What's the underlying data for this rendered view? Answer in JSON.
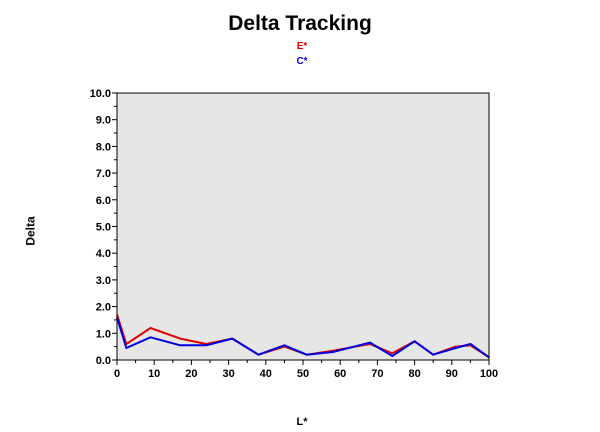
{
  "chart_data": {
    "type": "line",
    "title": "Delta Tracking",
    "xlabel": "L*",
    "ylabel": "Delta",
    "xlim": [
      0,
      100
    ],
    "ylim": [
      0,
      10
    ],
    "x_ticks": [
      "0",
      "10",
      "20",
      "30",
      "40",
      "50",
      "60",
      "70",
      "80",
      "90",
      "100"
    ],
    "y_ticks": [
      "0.0",
      "1.0",
      "2.0",
      "3.0",
      "4.0",
      "5.0",
      "6.0",
      "7.0",
      "8.0",
      "9.0",
      "10.0"
    ],
    "legend_position": "top-center",
    "background": "#e6e6e6",
    "series": [
      {
        "name": "E*",
        "color": "#e00000",
        "points": [
          [
            0,
            1.7
          ],
          [
            2.5,
            0.6
          ],
          [
            9,
            1.2
          ],
          [
            17,
            0.8
          ],
          [
            24,
            0.6
          ],
          [
            31,
            0.8
          ],
          [
            38,
            0.2
          ],
          [
            45,
            0.5
          ],
          [
            51,
            0.2
          ],
          [
            58,
            0.35
          ],
          [
            68,
            0.6
          ],
          [
            74,
            0.25
          ],
          [
            80,
            0.7
          ],
          [
            85,
            0.2
          ],
          [
            91,
            0.5
          ],
          [
            95,
            0.55
          ],
          [
            100,
            0.1
          ]
        ]
      },
      {
        "name": "C*",
        "color": "#0000e0",
        "points": [
          [
            0,
            1.6
          ],
          [
            2.5,
            0.45
          ],
          [
            9,
            0.85
          ],
          [
            17,
            0.55
          ],
          [
            24,
            0.55
          ],
          [
            31,
            0.8
          ],
          [
            38,
            0.2
          ],
          [
            45,
            0.55
          ],
          [
            51,
            0.2
          ],
          [
            58,
            0.3
          ],
          [
            68,
            0.65
          ],
          [
            74,
            0.15
          ],
          [
            80,
            0.7
          ],
          [
            85,
            0.2
          ],
          [
            91,
            0.45
          ],
          [
            95,
            0.6
          ],
          [
            100,
            0.1
          ]
        ]
      }
    ]
  }
}
